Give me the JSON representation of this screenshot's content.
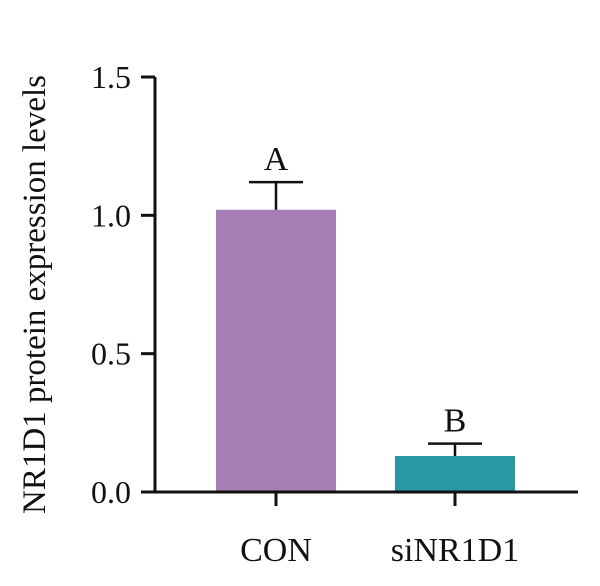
{
  "chart_data": {
    "type": "bar",
    "title": "",
    "xlabel": "",
    "ylabel": "NR1D1 protein expression levels",
    "categories": [
      "CON",
      "siNR1D1"
    ],
    "values": [
      1.02,
      0.13
    ],
    "errors": [
      0.1,
      0.045
    ],
    "significance": [
      "A",
      "B"
    ],
    "colors": [
      "#a47eb4",
      "#2898a5"
    ],
    "ylim": [
      0,
      1.5
    ],
    "yticks": [
      0.0,
      0.5,
      1.0,
      1.5
    ],
    "ytick_labels": [
      "0.0",
      "0.5",
      "1.0",
      "1.5"
    ],
    "grid": false,
    "legend": "none"
  }
}
